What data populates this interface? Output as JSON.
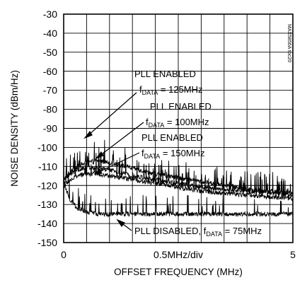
{
  "chart_data": {
    "type": "line",
    "xlabel": "OFFSET FREQUENCY (MHz)",
    "ylabel": "NOISE DENSITY (dBm/Hz)",
    "xlim": [
      0,
      5
    ],
    "ylim": [
      -150,
      -30
    ],
    "x_tick_labels": [
      "0",
      "0.5MHz/div",
      "5"
    ],
    "y_ticks": [
      -30,
      -40,
      -50,
      -60,
      -70,
      -80,
      -90,
      -100,
      -110,
      -120,
      -130,
      -140,
      -150
    ],
    "grid": true,
    "legend": "none",
    "side_tag": "MAX5856A toc20",
    "series": [
      {
        "key": "pll_125",
        "annotation": {
          "line1": "PLL ENABLED",
          "line2_prefix": "f",
          "line2_sub": "DATA",
          "line2_suffix": " = 125MHz"
        },
        "x": [
          0,
          0.05,
          0.15,
          0.3,
          0.5,
          0.75,
          1.0,
          1.5,
          2.0,
          2.5,
          3.0,
          3.5,
          4.0,
          4.5,
          5.0
        ],
        "y": [
          -120,
          -116,
          -113,
          -110,
          -108,
          -107,
          -108,
          -111,
          -114,
          -116,
          -118,
          -120,
          -122,
          -123,
          -124
        ]
      },
      {
        "key": "pll_100",
        "annotation": {
          "line1": "PLL ENABLED",
          "line2_prefix": "f",
          "line2_sub": "DATA",
          "line2_suffix": " = 100MHz"
        },
        "x": [
          0,
          0.05,
          0.15,
          0.3,
          0.5,
          0.75,
          1.0,
          1.5,
          2.0,
          2.5,
          3.0,
          3.5,
          4.0,
          4.5,
          5.0
        ],
        "y": [
          -117,
          -116,
          -114,
          -112,
          -111,
          -111,
          -112,
          -115,
          -117,
          -119,
          -121,
          -122,
          -123,
          -124,
          -125
        ]
      },
      {
        "key": "pll_150",
        "annotation": {
          "line1": "PLL ENABLED",
          "line2_prefix": "f",
          "line2_sub": "DATA",
          "line2_suffix": " = 150MHz"
        },
        "x": [
          0,
          0.05,
          0.15,
          0.3,
          0.5,
          0.75,
          1.0,
          1.5,
          2.0,
          2.5,
          3.0,
          3.5,
          4.0,
          4.5,
          5.0
        ],
        "y": [
          -121,
          -119,
          -117,
          -115,
          -114,
          -114,
          -115,
          -117,
          -119,
          -121,
          -123,
          -124,
          -125,
          -126,
          -127
        ]
      },
      {
        "key": "pll_disabled",
        "annotation": {
          "line1": "PLL DISABLED, f",
          "line2_prefix": "",
          "line2_sub": "DATA",
          "line2_suffix": " = 75MHz"
        },
        "x": [
          0,
          0.05,
          0.15,
          0.3,
          0.5,
          0.75,
          1.0,
          1.5,
          2.0,
          2.5,
          3.0,
          3.5,
          4.0,
          4.5,
          5.0
        ],
        "y": [
          -118,
          -122,
          -128,
          -132,
          -134,
          -135,
          -135,
          -135,
          -135,
          -135,
          -135,
          -135,
          -135,
          -135,
          -135
        ]
      }
    ]
  }
}
